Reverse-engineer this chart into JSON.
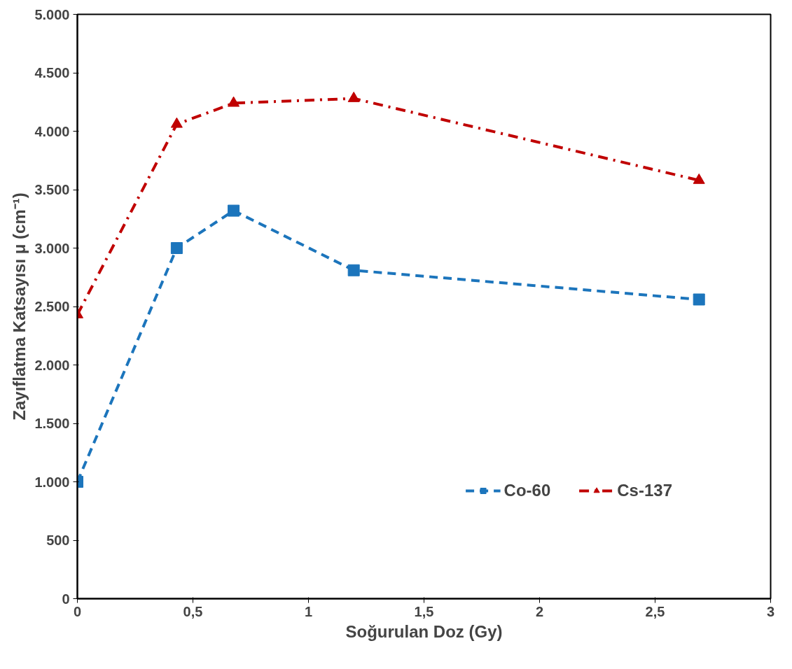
{
  "chart_data": {
    "type": "line",
    "xlabel": "Soğurulan Doz (Gy)",
    "ylabel": "Zayıflatma Katsayısı μ (cm⁻¹)",
    "xlim": [
      0,
      3
    ],
    "ylim": [
      0,
      5000
    ],
    "xticks": [
      0,
      {
        "value": 0.5,
        "label": "0,5"
      },
      1,
      {
        "value": 1.5,
        "label": "1,5"
      },
      2,
      {
        "value": 2.5,
        "label": "2,5"
      },
      3
    ],
    "yticks": [
      0,
      500,
      {
        "value": 1000,
        "label": "1.000"
      },
      {
        "value": 1500,
        "label": "1.500"
      },
      {
        "value": 2000,
        "label": "2.000"
      },
      {
        "value": 2500,
        "label": "2.500"
      },
      {
        "value": 3000,
        "label": "3.000"
      },
      {
        "value": 3500,
        "label": "3.500"
      },
      {
        "value": 4000,
        "label": "4.000"
      },
      {
        "value": 4500,
        "label": "4.500"
      },
      {
        "value": 5000,
        "label": "5.000"
      }
    ],
    "x": [
      0,
      0.43,
      0.676,
      1.196,
      2.69
    ],
    "series": [
      {
        "name": "Co-60",
        "color": "#1c75bc",
        "values": [
          1000,
          3000,
          3320,
          2810,
          2560
        ],
        "marker": "square",
        "line_style": "dashed"
      },
      {
        "name": "Cs-137",
        "color": "#c00000",
        "values": [
          2430,
          4060,
          4240,
          4280,
          3580
        ],
        "marker": "triangle",
        "line_style": "dashdot"
      }
    ],
    "grid": false,
    "legend": "bottom right"
  }
}
